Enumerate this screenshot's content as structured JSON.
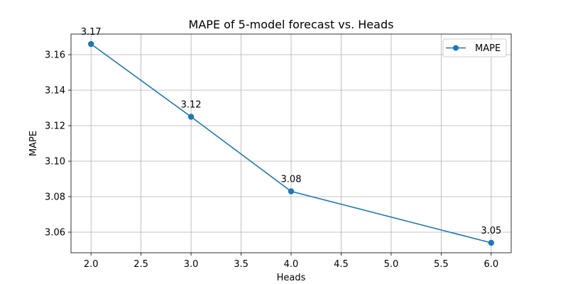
{
  "chart_data": {
    "type": "line",
    "title": "MAPE of 5-model forecast vs. Heads",
    "xlabel": "Heads",
    "ylabel": "MAPE",
    "x": [
      2.0,
      3.0,
      4.0,
      6.0
    ],
    "series": [
      {
        "name": "MAPE",
        "values": [
          3.166,
          3.125,
          3.083,
          3.054
        ],
        "labels": [
          "3.17",
          "3.12",
          "3.08",
          "3.05"
        ],
        "color": "#1f77b4",
        "marker": "circle"
      }
    ],
    "xlim": [
      1.8,
      6.2
    ],
    "ylim": [
      3.0484,
      3.1716
    ],
    "xticks": [
      "2.0",
      "2.5",
      "3.0",
      "3.5",
      "4.0",
      "4.5",
      "5.0",
      "5.5",
      "6.0"
    ],
    "yticks": [
      "3.06",
      "3.08",
      "3.10",
      "3.12",
      "3.14",
      "3.16"
    ],
    "grid": true,
    "legend_position": "top-right"
  }
}
